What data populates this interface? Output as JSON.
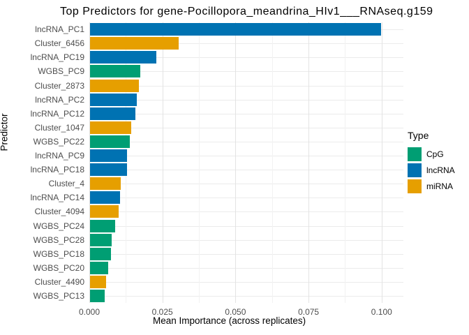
{
  "chart_data": {
    "type": "bar",
    "orientation": "horizontal",
    "title": "Top Predictors for gene-Pocillopora_meandrina_HIv1___RNAseq.g159",
    "xlabel": "Mean Importance (across replicates)",
    "ylabel": "Predictor",
    "xlim": [
      0,
      0.104
    ],
    "x_ticks": [
      0,
      0.025,
      0.05,
      0.075,
      0.1
    ],
    "x_tick_labels": [
      "0.000",
      "0.025",
      "0.050",
      "0.075",
      "0.100"
    ],
    "x_minor_ticks": [
      0.0125,
      0.0375,
      0.0625,
      0.0875
    ],
    "grid": "on",
    "legend": {
      "title": "Type",
      "position": "right",
      "entries": [
        {
          "label": "CpG",
          "color": "#009E73"
        },
        {
          "label": "lncRNA",
          "color": "#0072B2"
        },
        {
          "label": "miRNA",
          "color": "#E69F00"
        }
      ]
    },
    "colors": {
      "CpG": "#009E73",
      "lncRNA": "#0072B2",
      "miRNA": "#E69F00"
    },
    "bars": [
      {
        "label": "lncRNA_PC1",
        "type": "lncRNA",
        "value": 0.0995
      },
      {
        "label": "Cluster_6456",
        "type": "miRNA",
        "value": 0.0302
      },
      {
        "label": "lncRNA_PC19",
        "type": "lncRNA",
        "value": 0.0226
      },
      {
        "label": "WGBS_PC9",
        "type": "CpG",
        "value": 0.0171
      },
      {
        "label": "Cluster_2873",
        "type": "miRNA",
        "value": 0.0166
      },
      {
        "label": "lncRNA_PC2",
        "type": "lncRNA",
        "value": 0.0159
      },
      {
        "label": "lncRNA_PC12",
        "type": "lncRNA",
        "value": 0.0156
      },
      {
        "label": "Cluster_1047",
        "type": "miRNA",
        "value": 0.014
      },
      {
        "label": "WGBS_PC22",
        "type": "CpG",
        "value": 0.0136
      },
      {
        "label": "lncRNA_PC9",
        "type": "lncRNA",
        "value": 0.0127
      },
      {
        "label": "lncRNA_PC18",
        "type": "lncRNA",
        "value": 0.0126
      },
      {
        "label": "Cluster_4",
        "type": "miRNA",
        "value": 0.0106
      },
      {
        "label": "lncRNA_PC14",
        "type": "lncRNA",
        "value": 0.0102
      },
      {
        "label": "Cluster_4094",
        "type": "miRNA",
        "value": 0.0097
      },
      {
        "label": "WGBS_PC24",
        "type": "CpG",
        "value": 0.0085
      },
      {
        "label": "WGBS_PC28",
        "type": "CpG",
        "value": 0.0073
      },
      {
        "label": "WGBS_PC18",
        "type": "CpG",
        "value": 0.0071
      },
      {
        "label": "WGBS_PC20",
        "type": "CpG",
        "value": 0.0062
      },
      {
        "label": "Cluster_4490",
        "type": "miRNA",
        "value": 0.0054
      },
      {
        "label": "WGBS_PC13",
        "type": "CpG",
        "value": 0.0051
      }
    ]
  }
}
